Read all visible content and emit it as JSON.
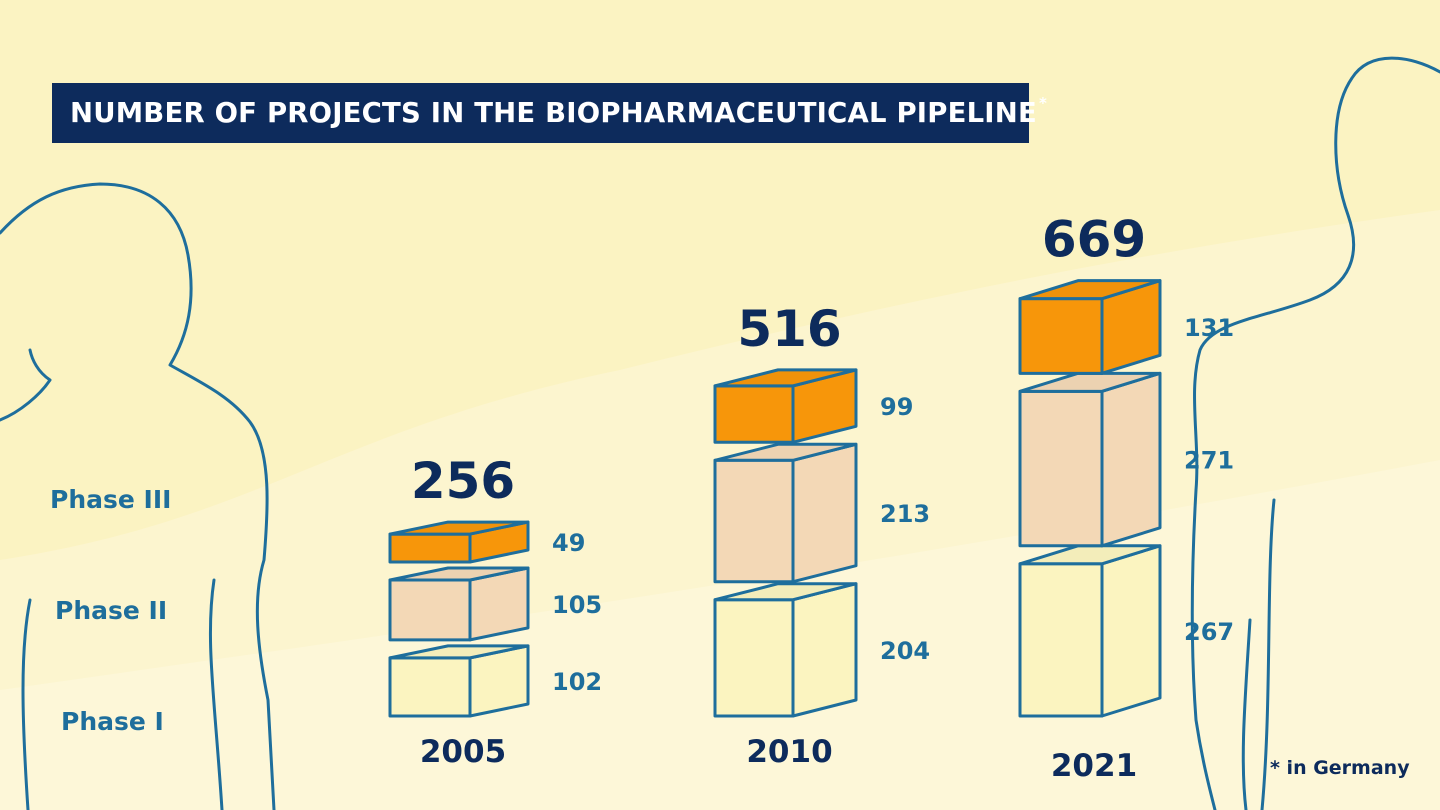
{
  "title": "NUMBER OF PROJECTS IN THE BIOPHARMACEUTICAL PIPELINE",
  "title_marker": "*",
  "footnote": "* in Germany",
  "phase_labels": [
    "Phase III",
    "Phase II",
    "Phase I"
  ],
  "colors": {
    "background": "#fbf3c2",
    "title_bg": "#0d2b5c",
    "outline": "#1e6e9c",
    "phase1": "#fbf4c0",
    "phase2": "#f3d8b6",
    "phase3": "#f7960a"
  },
  "chart_data": {
    "type": "bar",
    "subtype": "stacked-3d-blocks",
    "title": "NUMBER OF PROJECTS IN THE BIOPHARMACEUTICAL PIPELINE",
    "categories": [
      "2005",
      "2010",
      "2021"
    ],
    "series": [
      {
        "name": "Phase I",
        "values": [
          102,
          204,
          267
        ]
      },
      {
        "name": "Phase II",
        "values": [
          105,
          213,
          271
        ]
      },
      {
        "name": "Phase III",
        "values": [
          49,
          99,
          131
        ]
      }
    ],
    "totals": [
      256,
      516,
      669
    ],
    "annotation": "* in Germany"
  }
}
